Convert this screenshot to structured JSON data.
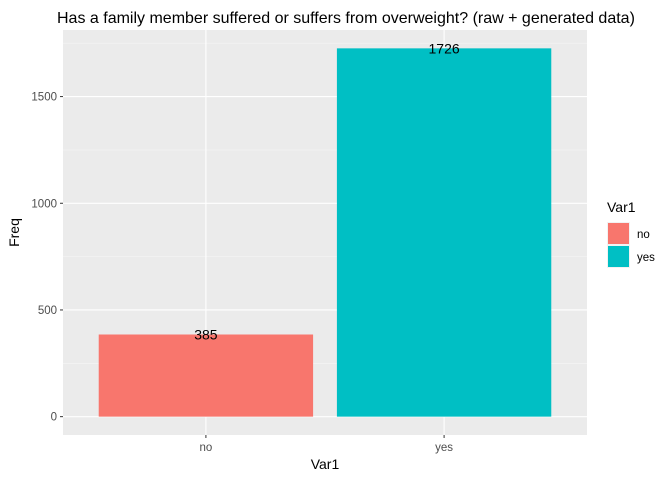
{
  "chart_data": {
    "type": "bar",
    "title": "Has a family member suffered or suffers from overweight? (raw + generated data)",
    "xlabel": "Var1",
    "ylabel": "Freq",
    "categories": [
      "no",
      "yes"
    ],
    "values": [
      385,
      1726
    ],
    "data_labels": [
      "385",
      "1726"
    ],
    "yticks": [
      0,
      500,
      1000,
      1500
    ],
    "ytick_labels": [
      "0",
      "500",
      "1000",
      "1500"
    ],
    "ylim": [
      -86,
      1812
    ],
    "grid": true,
    "legend": {
      "title": "Var1",
      "placement": "right",
      "entries": [
        {
          "label": "no",
          "color": "#F8766D"
        },
        {
          "label": "yes",
          "color": "#00BFC4"
        }
      ]
    },
    "colors": {
      "panel_background": "#EBEBEB",
      "grid_major": "#FFFFFF",
      "grid_minor": "#F5F5F5",
      "tick_text": "#4D4D4D",
      "tick_mark": "#333333"
    }
  }
}
